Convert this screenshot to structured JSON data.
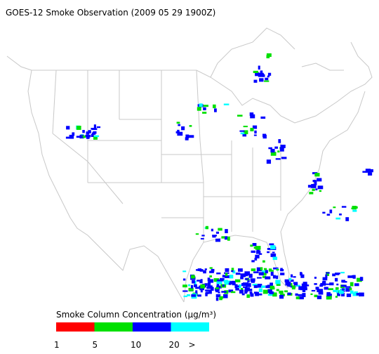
{
  "header": {
    "title": "GOES-12 Smoke Observation (2009 05 29  1900Z)"
  },
  "legend": {
    "title": "Smoke Column Concentration (μg/m³)",
    "colors": [
      "#ff0000",
      "#00e000",
      "#0000ff",
      "#00ffff"
    ],
    "labels": [
      "1",
      "5",
      "10",
      "20",
      ">"
    ]
  }
}
